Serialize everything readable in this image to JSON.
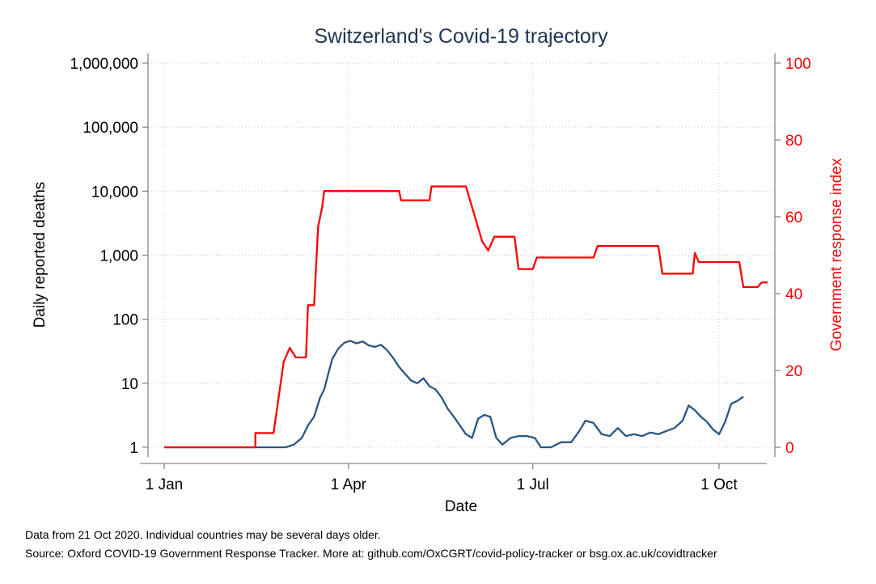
{
  "chart_data": {
    "type": "line",
    "title": "Switzerland's Covid-19 trajectory",
    "xlabel": "Date",
    "ylabel_left": "Daily reported deaths",
    "ylabel_right": "Government response index",
    "x_ticks": [
      {
        "date": "2020-01-01",
        "label": "1 Jan"
      },
      {
        "date": "2020-04-01",
        "label": "1 Apr"
      },
      {
        "date": "2020-07-01",
        "label": "1 Jul"
      },
      {
        "date": "2020-10-01",
        "label": "1 Oct"
      }
    ],
    "y_left": {
      "scale": "log",
      "range": [
        1,
        1000000
      ],
      "ticks": [
        {
          "value": 1,
          "label": "1"
        },
        {
          "value": 10,
          "label": "10"
        },
        {
          "value": 100,
          "label": "100"
        },
        {
          "value": 1000,
          "label": "1,000"
        },
        {
          "value": 10000,
          "label": "10,000"
        },
        {
          "value": 100000,
          "label": "100,000"
        },
        {
          "value": 1000000,
          "label": "1,000,000"
        }
      ]
    },
    "y_right": {
      "scale": "linear",
      "range": [
        0,
        100
      ],
      "ticks": [
        {
          "value": 0,
          "label": "0"
        },
        {
          "value": 20,
          "label": "20"
        },
        {
          "value": 40,
          "label": "40"
        },
        {
          "value": 60,
          "label": "60"
        },
        {
          "value": 80,
          "label": "80"
        },
        {
          "value": 100,
          "label": "100"
        }
      ]
    },
    "grid": true,
    "series": [
      {
        "axis": "left",
        "color": "#2a5783",
        "points": [
          [
            "2020-01-01",
            1
          ],
          [
            "2020-02-15",
            1
          ],
          [
            "2020-03-01",
            1
          ],
          [
            "2020-03-05",
            1.1
          ],
          [
            "2020-03-09",
            1.4
          ],
          [
            "2020-03-12",
            2.2
          ],
          [
            "2020-03-15",
            3.0
          ],
          [
            "2020-03-18",
            6
          ],
          [
            "2020-03-20",
            8
          ],
          [
            "2020-03-22",
            14
          ],
          [
            "2020-03-24",
            24
          ],
          [
            "2020-03-27",
            35
          ],
          [
            "2020-03-30",
            43
          ],
          [
            "2020-04-02",
            46
          ],
          [
            "2020-04-05",
            42
          ],
          [
            "2020-04-08",
            45
          ],
          [
            "2020-04-11",
            39
          ],
          [
            "2020-04-14",
            37
          ],
          [
            "2020-04-17",
            40
          ],
          [
            "2020-04-20",
            33
          ],
          [
            "2020-04-23",
            25
          ],
          [
            "2020-04-26",
            18
          ],
          [
            "2020-04-29",
            14
          ],
          [
            "2020-05-02",
            11
          ],
          [
            "2020-05-05",
            10
          ],
          [
            "2020-05-08",
            12
          ],
          [
            "2020-05-11",
            9
          ],
          [
            "2020-05-14",
            8
          ],
          [
            "2020-05-17",
            6
          ],
          [
            "2020-05-20",
            4
          ],
          [
            "2020-05-23",
            3
          ],
          [
            "2020-05-26",
            2.2
          ],
          [
            "2020-05-29",
            1.6
          ],
          [
            "2020-06-01",
            1.4
          ],
          [
            "2020-06-04",
            2.8
          ],
          [
            "2020-06-07",
            3.2
          ],
          [
            "2020-06-10",
            3.0
          ],
          [
            "2020-06-13",
            1.4
          ],
          [
            "2020-06-16",
            1.1
          ],
          [
            "2020-06-20",
            1.4
          ],
          [
            "2020-06-24",
            1.5
          ],
          [
            "2020-06-28",
            1.5
          ],
          [
            "2020-07-02",
            1.4
          ],
          [
            "2020-07-05",
            1.0
          ],
          [
            "2020-07-10",
            1.0
          ],
          [
            "2020-07-15",
            1.2
          ],
          [
            "2020-07-20",
            1.2
          ],
          [
            "2020-07-24",
            1.8
          ],
          [
            "2020-07-27",
            2.6
          ],
          [
            "2020-07-31",
            2.4
          ],
          [
            "2020-08-04",
            1.6
          ],
          [
            "2020-08-08",
            1.5
          ],
          [
            "2020-08-12",
            2.0
          ],
          [
            "2020-08-16",
            1.5
          ],
          [
            "2020-08-20",
            1.6
          ],
          [
            "2020-08-24",
            1.5
          ],
          [
            "2020-08-28",
            1.7
          ],
          [
            "2020-09-01",
            1.6
          ],
          [
            "2020-09-05",
            1.8
          ],
          [
            "2020-09-09",
            2.0
          ],
          [
            "2020-09-13",
            2.6
          ],
          [
            "2020-09-16",
            4.5
          ],
          [
            "2020-09-19",
            3.8
          ],
          [
            "2020-09-22",
            3.0
          ],
          [
            "2020-09-25",
            2.5
          ],
          [
            "2020-09-28",
            1.9
          ],
          [
            "2020-10-01",
            1.6
          ],
          [
            "2020-10-04",
            2.5
          ],
          [
            "2020-10-07",
            4.8
          ],
          [
            "2020-10-10",
            5.3
          ],
          [
            "2020-10-13",
            6.2
          ]
        ]
      },
      {
        "axis": "right",
        "color": "#ff0000",
        "points": [
          [
            "2020-01-01",
            0
          ],
          [
            "2020-02-15",
            0
          ],
          [
            "2020-02-15",
            3.7
          ],
          [
            "2020-02-24",
            3.7
          ],
          [
            "2020-02-27",
            14.8
          ],
          [
            "2020-02-29",
            22.2
          ],
          [
            "2020-03-03",
            25.9
          ],
          [
            "2020-03-06",
            23.4
          ],
          [
            "2020-03-11",
            23.4
          ],
          [
            "2020-03-12",
            37.0
          ],
          [
            "2020-03-15",
            37.0
          ],
          [
            "2020-03-17",
            57.4
          ],
          [
            "2020-03-19",
            62.5
          ],
          [
            "2020-03-20",
            66.7
          ],
          [
            "2020-04-26",
            66.7
          ],
          [
            "2020-04-27",
            64.3
          ],
          [
            "2020-05-11",
            64.3
          ],
          [
            "2020-05-12",
            67.9
          ],
          [
            "2020-05-29",
            67.9
          ],
          [
            "2020-06-01",
            62.5
          ],
          [
            "2020-06-06",
            53.6
          ],
          [
            "2020-06-09",
            51.2
          ],
          [
            "2020-06-12",
            54.8
          ],
          [
            "2020-06-22",
            54.8
          ],
          [
            "2020-06-24",
            46.4
          ],
          [
            "2020-07-01",
            46.4
          ],
          [
            "2020-07-03",
            49.4
          ],
          [
            "2020-07-31",
            49.4
          ],
          [
            "2020-08-02",
            52.4
          ],
          [
            "2020-09-01",
            52.4
          ],
          [
            "2020-09-03",
            45.2
          ],
          [
            "2020-09-18",
            45.2
          ],
          [
            "2020-09-19",
            50.6
          ],
          [
            "2020-09-21",
            48.2
          ],
          [
            "2020-10-11",
            48.2
          ],
          [
            "2020-10-13",
            41.7
          ],
          [
            "2020-10-20",
            41.7
          ],
          [
            "2020-10-22",
            42.9
          ],
          [
            "2020-10-25",
            42.9
          ]
        ]
      }
    ]
  },
  "notes": {
    "line1": "Data from 21 Oct 2020. Individual countries may be several days older.",
    "line2": "Source: Oxford COVID-19 Government Response Tracker. More at: github.com/OxCGRT/covid-policy-tracker or bsg.ox.ac.uk/covidtracker"
  }
}
